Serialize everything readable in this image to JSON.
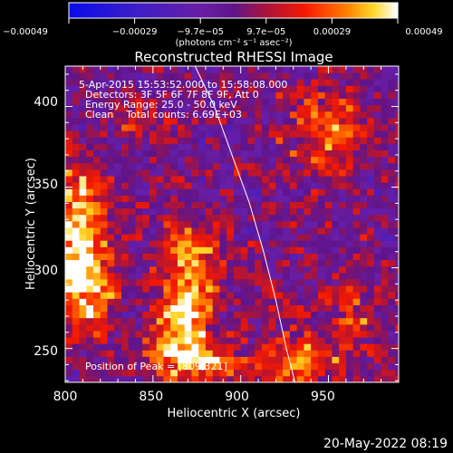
{
  "chart_data": {
    "type": "heatmap",
    "title": "Reconstructed RHESSI Image",
    "xlabel": "Heliocentric X (arcsec)",
    "ylabel": "Heliocentric Y (arcsec)",
    "xlim": [
      800,
      990
    ],
    "ylim": [
      229,
      425
    ],
    "xticks": [
      {
        "value": 800,
        "label": "800"
      },
      {
        "value": 850,
        "label": "850"
      },
      {
        "value": 900,
        "label": "900"
      },
      {
        "value": 950,
        "label": "950"
      }
    ],
    "yticks": [
      {
        "value": 250,
        "label": "250"
      },
      {
        "value": 300,
        "label": "300"
      },
      {
        "value": 350,
        "label": "350"
      },
      {
        "value": 400,
        "label": "400"
      }
    ],
    "colorbar": {
      "range": [
        -0.00049,
        0.00049
      ],
      "units": "(photons cm⁻² s⁻¹ asec⁻²)",
      "ticks": [
        {
          "value": -0.00049,
          "label": "−0.00049"
        },
        {
          "value": -0.00029,
          "label": "−0.00029"
        },
        {
          "value": -9.7e-05,
          "label": "−9.7e−05"
        },
        {
          "value": 9.7e-05,
          "label": "9.7e−05"
        },
        {
          "value": 0.00029,
          "label": "0.00029"
        },
        {
          "value": 0.00049,
          "label": "0.00049"
        }
      ]
    },
    "annotations": [
      "5-Apr-2015 15:53:52.000 to 15:58:08.000",
      "Detectors: 3F 5F 6F 7F 8F 9F, Att 0",
      "Energy Range: 25.0 - 50.0 keV",
      "Clean    Total counts: 6.69E+03"
    ],
    "peak_label": "Position of Peak = [809,321]",
    "peak_position": [
      809,
      321
    ],
    "date_stamp": "20-May-2022 08:19",
    "pixel_size_arcsec": 4,
    "limb_curve": [
      [
        874,
        425
      ],
      [
        885,
        400
      ],
      [
        895,
        370
      ],
      [
        905,
        340
      ],
      [
        913,
        310
      ],
      [
        920,
        280
      ],
      [
        926,
        250
      ],
      [
        931,
        229
      ]
    ],
    "sources": [
      {
        "x": 808,
        "y": 322,
        "sx": 11,
        "sy": 30,
        "amp": 0.00049
      },
      {
        "x": 812,
        "y": 285,
        "sx": 10,
        "sy": 18,
        "amp": 0.00026
      },
      {
        "x": 870,
        "y": 300,
        "sx": 10,
        "sy": 22,
        "amp": 0.00038
      },
      {
        "x": 865,
        "y": 262,
        "sx": 13,
        "sy": 16,
        "amp": 0.00036
      },
      {
        "x": 875,
        "y": 242,
        "sx": 18,
        "sy": 8,
        "amp": 0.00034
      },
      {
        "x": 950,
        "y": 385,
        "sx": 16,
        "sy": 18,
        "amp": 0.0003
      },
      {
        "x": 935,
        "y": 240,
        "sx": 20,
        "sy": 14,
        "amp": 0.00028
      },
      {
        "x": 962,
        "y": 270,
        "sx": 10,
        "sy": 14,
        "amp": 0.00019
      },
      {
        "x": 838,
        "y": 395,
        "sx": 8,
        "sy": 8,
        "amp": 0.00016
      }
    ]
  }
}
